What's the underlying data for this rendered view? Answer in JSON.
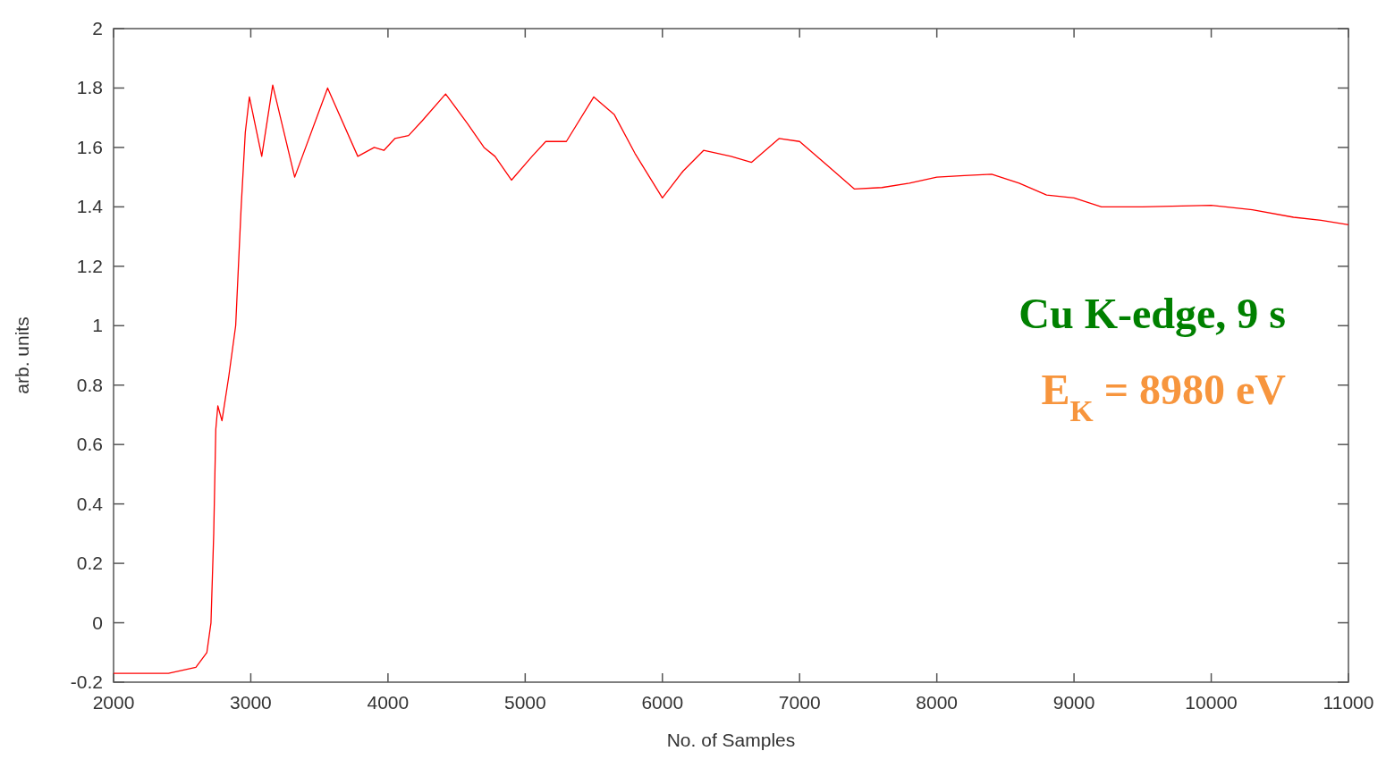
{
  "chart_data": {
    "type": "line",
    "xlabel": "No. of Samples",
    "ylabel": "arb. units",
    "xlim": [
      2000,
      11000
    ],
    "xticks": [
      2000,
      3000,
      4000,
      5000,
      6000,
      7000,
      8000,
      9000,
      10000,
      11000
    ],
    "ylim": [
      -0.2,
      2
    ],
    "yticks": [
      -0.2,
      0,
      0.2,
      0.4,
      0.6,
      0.8,
      1,
      1.2,
      1.4,
      1.6,
      1.8,
      2
    ],
    "grid": false,
    "marker": "none",
    "line_style": "solid",
    "annotations": [
      "Cu K-edge, 9 s",
      "E$_{K}$ = 8980 eV"
    ],
    "series": [
      {
        "color": "#ff0000",
        "x": [
          2000,
          2400,
          2600,
          2680,
          2710,
          2730,
          2745,
          2760,
          2790,
          2840,
          2890,
          2930,
          2960,
          2990,
          3080,
          3160,
          3320,
          3560,
          3780,
          3900,
          3970,
          4050,
          4150,
          4250,
          4420,
          4580,
          4700,
          4780,
          4900,
          5050,
          5150,
          5300,
          5500,
          5650,
          5800,
          6000,
          6150,
          6300,
          6500,
          6650,
          6850,
          7000,
          7200,
          7400,
          7600,
          7800,
          8000,
          8200,
          8400,
          8600,
          8800,
          9000,
          9200,
          9500,
          10000,
          10300,
          10600,
          10800,
          11000
        ],
        "values": [
          -0.17,
          -0.17,
          -0.15,
          -0.1,
          0.0,
          0.3,
          0.65,
          0.73,
          0.68,
          0.83,
          1.0,
          1.4,
          1.65,
          1.77,
          1.57,
          1.81,
          1.5,
          1.8,
          1.57,
          1.6,
          1.59,
          1.63,
          1.64,
          1.69,
          1.78,
          1.68,
          1.6,
          1.57,
          1.49,
          1.57,
          1.62,
          1.62,
          1.77,
          1.71,
          1.58,
          1.43,
          1.52,
          1.59,
          1.57,
          1.55,
          1.63,
          1.62,
          1.54,
          1.46,
          1.465,
          1.48,
          1.5,
          1.505,
          1.51,
          1.48,
          1.44,
          1.43,
          1.4,
          1.4,
          1.405,
          1.39,
          1.365,
          1.355,
          1.34
        ]
      }
    ]
  }
}
